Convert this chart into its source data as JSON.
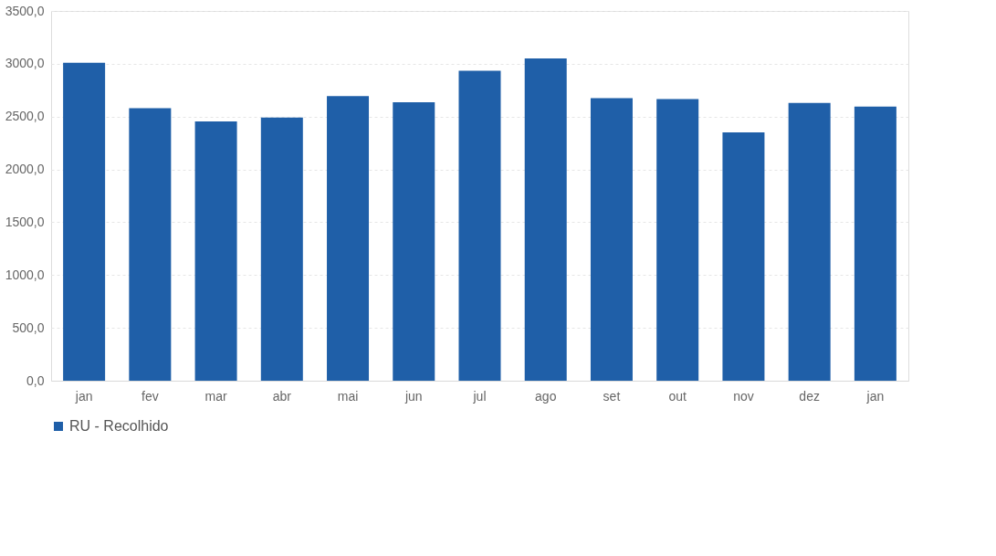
{
  "chart_data": {
    "type": "bar",
    "categories": [
      "jan",
      "fev",
      "mar",
      "abr",
      "mai",
      "jun",
      "jul",
      "ago",
      "set",
      "out",
      "nov",
      "dez",
      "jan"
    ],
    "series": [
      {
        "name": "RU - Recolhido",
        "color": "#1f5fa8",
        "values": [
          3010,
          2580,
          2455,
          2490,
          2695,
          2635,
          2935,
          3050,
          2675,
          2665,
          2350,
          2630,
          2595
        ]
      }
    ],
    "ylim": [
      0,
      3500
    ],
    "yticks": [
      {
        "value": 0,
        "label": "0,0"
      },
      {
        "value": 500,
        "label": "500,0"
      },
      {
        "value": 1000,
        "label": "1000,0"
      },
      {
        "value": 1500,
        "label": "1500,0"
      },
      {
        "value": 2000,
        "label": "2000,0"
      },
      {
        "value": 2500,
        "label": "2500,0"
      },
      {
        "value": 3000,
        "label": "3000,0"
      },
      {
        "value": 3500,
        "label": "3500,0"
      }
    ],
    "grid": "y",
    "legend": "bottom"
  }
}
